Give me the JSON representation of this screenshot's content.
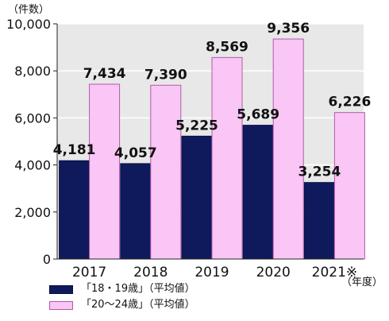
{
  "chart_data": {
    "type": "bar",
    "y_unit": "（件数）",
    "x_unit": "（年度）",
    "categories": [
      "2017",
      "2018",
      "2019",
      "2020",
      "2021※"
    ],
    "ylim": [
      0,
      10000
    ],
    "yticks": [
      0,
      2000,
      4000,
      6000,
      8000,
      10000
    ],
    "ytick_labels": [
      "0",
      "2,000",
      "4,000",
      "6,000",
      "8,000",
      "10,000"
    ],
    "grid": true,
    "legend_position": "bottom-left",
    "series": [
      {
        "name": "「18・19歳」（平均値）",
        "color": "#0f1a5c",
        "values": [
          4181,
          4057,
          5225,
          5689,
          3254
        ],
        "labels": [
          "4,181",
          "4,057",
          "5,225",
          "5,689",
          "3,254"
        ]
      },
      {
        "name": "「20～24歳」（平均値）",
        "color": "#f9c6f5",
        "values": [
          7434,
          7390,
          8569,
          9356,
          6226
        ],
        "labels": [
          "7,434",
          "7,390",
          "8,569",
          "9,356",
          "6,226"
        ]
      }
    ]
  }
}
